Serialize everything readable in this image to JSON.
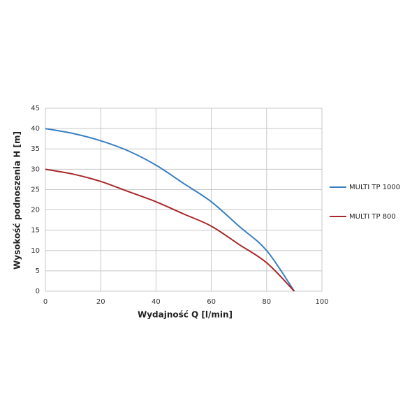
{
  "chart_data": {
    "type": "line",
    "x_label": "Wydajność Q [l/min]",
    "y_label": "Wysokość podnoszenia H [m]",
    "x": [
      0,
      10,
      20,
      30,
      40,
      50,
      60,
      70,
      80,
      90
    ],
    "series": [
      {
        "name": "MULTI TP 1000",
        "color": "#3a7fc1",
        "values": [
          40,
          38.8,
          37,
          34.5,
          31,
          26.5,
          22,
          16,
          10,
          0
        ]
      },
      {
        "name": "MULTI TP 800",
        "color": "#a8282a",
        "values": [
          30,
          28.8,
          27,
          24.5,
          22,
          19,
          16,
          11.5,
          7,
          0
        ]
      }
    ],
    "xlim": [
      0,
      100
    ],
    "xticks": [
      0,
      20,
      40,
      60,
      80,
      100
    ],
    "ylim": [
      0,
      45
    ],
    "yticks": [
      0,
      5,
      10,
      15,
      20,
      25,
      30,
      35,
      40,
      45
    ],
    "grid": true,
    "legend": "right"
  }
}
